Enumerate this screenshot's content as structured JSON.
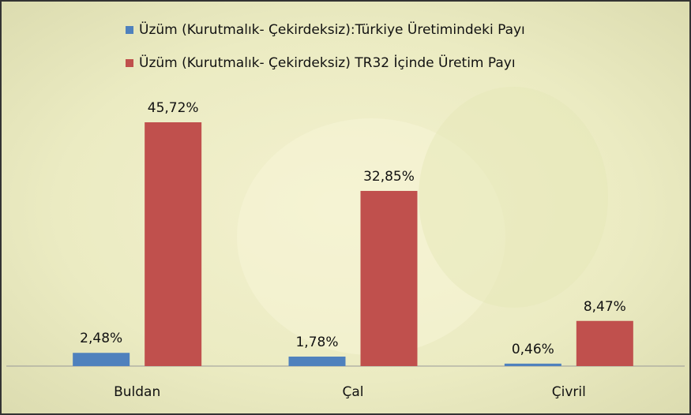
{
  "chart_data": {
    "type": "bar",
    "categories": [
      "Buldan",
      "Çal",
      "Çivril"
    ],
    "series": [
      {
        "name": "Üzüm (Kurutmalık- Çekirdeksiz):Türkiye Üretimindeki Payı",
        "color": "#4f81bd",
        "values": [
          2.48,
          1.78,
          0.46
        ],
        "value_labels": [
          "2,48%",
          "1,78%",
          "0,46%"
        ]
      },
      {
        "name": "Üzüm (Kurutmalık- Çekirdeksiz) TR32 İçinde Üretim Payı",
        "color": "#c0504d",
        "values": [
          45.72,
          32.85,
          8.47
        ],
        "value_labels": [
          "45,72%",
          "32,85%",
          "8,47%"
        ]
      }
    ]
  }
}
